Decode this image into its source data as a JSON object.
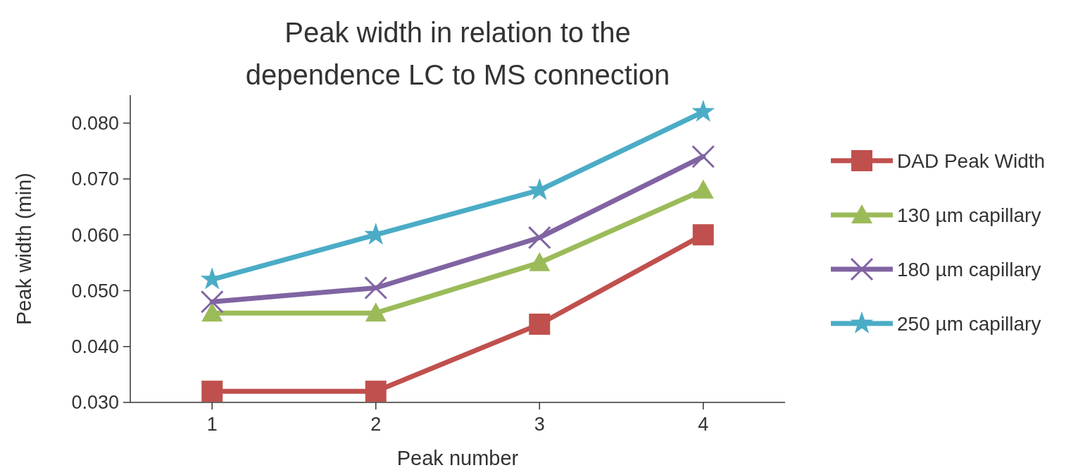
{
  "chart_data": {
    "type": "line",
    "title": "Peak width in relation to the dependence LC to MS connection",
    "xlabel": "Peak number",
    "ylabel": "Peak width (min)",
    "x": [
      1,
      2,
      3,
      4
    ],
    "xlim": [
      0.5,
      4.5
    ],
    "xticks": [
      1,
      2,
      3,
      4
    ],
    "ylim": [
      0.03,
      0.085
    ],
    "yticks": [
      {
        "value": 0.03,
        "label": "0.030"
      },
      {
        "value": 0.04,
        "label": "0.040"
      },
      {
        "value": 0.05,
        "label": "0.050"
      },
      {
        "value": 0.06,
        "label": "0.060"
      },
      {
        "value": 0.07,
        "label": "0.070"
      },
      {
        "value": 0.08,
        "label": "0.080"
      }
    ],
    "grid": false,
    "legend": "right",
    "line_style": "solid",
    "series": [
      {
        "name": "DAD Peak Width",
        "color": "#c0504d",
        "marker": "square",
        "values": [
          0.032,
          0.032,
          0.044,
          0.06
        ]
      },
      {
        "name": "130 µm capillary",
        "color": "#9bbb59",
        "marker": "triangle",
        "values": [
          0.046,
          0.046,
          0.055,
          0.068
        ]
      },
      {
        "name": "180 µm capillary",
        "color": "#8064a2",
        "marker": "cross",
        "values": [
          0.048,
          0.0505,
          0.0595,
          0.074
        ]
      },
      {
        "name": "250 µm capillary",
        "color": "#4bacc6",
        "marker": "star",
        "values": [
          0.052,
          0.06,
          0.068,
          0.082
        ]
      }
    ]
  }
}
